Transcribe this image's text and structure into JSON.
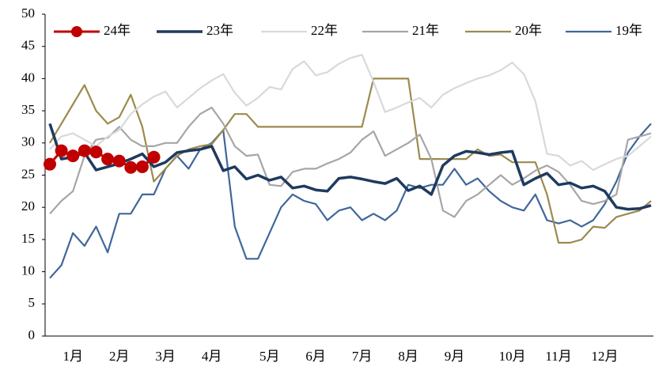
{
  "chart_data": {
    "type": "line",
    "categories": [
      null,
      null,
      "1月",
      null,
      null,
      null,
      "2月",
      null,
      null,
      null,
      "3月",
      null,
      null,
      null,
      "4月",
      null,
      null,
      null,
      null,
      "5月",
      null,
      null,
      null,
      "6月",
      null,
      null,
      null,
      "7月",
      null,
      null,
      null,
      "8月",
      null,
      null,
      null,
      "9月",
      null,
      null,
      null,
      null,
      "10月",
      null,
      null,
      null,
      "11月",
      null,
      null,
      null,
      "12月",
      null,
      null,
      null,
      null
    ],
    "ylim": [
      0,
      50
    ],
    "yticks": [
      0,
      5,
      10,
      15,
      20,
      25,
      30,
      35,
      40,
      45,
      50
    ],
    "grid": false,
    "legend": "top",
    "series": [
      {
        "name": "24年",
        "color": "#c00000",
        "marker": "circle",
        "values": [
          26.7,
          28.8,
          28,
          28.8,
          28.6,
          27.5,
          27.2,
          26.2,
          26.3,
          27.8,
          null,
          null,
          null,
          null,
          null,
          null,
          null,
          null,
          null,
          null,
          null,
          null,
          null,
          null,
          null,
          null,
          null,
          null,
          null,
          null,
          null,
          null,
          null,
          null,
          null,
          null,
          null,
          null,
          null,
          null,
          null,
          null,
          null,
          null,
          null,
          null,
          null,
          null,
          null,
          null,
          null,
          null,
          null
        ]
      },
      {
        "name": "23年",
        "color": "#1f3a5f",
        "values": [
          33,
          27.5,
          27.8,
          28.5,
          25.8,
          26.3,
          26.8,
          27.5,
          28.3,
          26.3,
          27,
          28.5,
          28.8,
          29,
          29.5,
          25.7,
          26.3,
          24.4,
          25,
          24.2,
          24.7,
          23,
          23.3,
          22.7,
          22.5,
          24.5,
          24.7,
          24.4,
          24,
          23.7,
          24.5,
          22.6,
          23.3,
          22,
          26.5,
          28,
          28.7,
          28.5,
          28.2,
          28.5,
          28.7,
          23.5,
          24.5,
          25.3,
          23.5,
          23.8,
          23,
          23.3,
          22.5,
          20,
          19.7,
          19.8,
          20.3
        ]
      },
      {
        "name": "22年",
        "color": "#d9d9d9",
        "values": [
          29,
          31,
          31.5,
          30.5,
          29.5,
          31,
          32,
          34.5,
          36,
          37.2,
          38,
          35.5,
          37,
          38.5,
          39.7,
          40.7,
          37.8,
          35.8,
          37,
          38.7,
          38.3,
          41.5,
          42.7,
          40.5,
          41,
          42.3,
          43.2,
          43.7,
          39.5,
          34.8,
          35.5,
          36.3,
          37,
          35.5,
          37.5,
          38.5,
          39.3,
          40,
          40.5,
          41.3,
          42.5,
          40.7,
          36.5,
          28.3,
          28,
          26.5,
          27.2,
          25.8,
          26.7,
          27.5,
          28,
          29.5,
          31
        ]
      },
      {
        "name": "21年",
        "color": "#a6a6a6",
        "values": [
          19,
          21,
          22.5,
          28,
          30.5,
          30.8,
          32.5,
          30.5,
          29.5,
          29.5,
          30,
          30,
          32.5,
          34.5,
          35.5,
          33,
          29.5,
          28,
          28.2,
          23.5,
          23.3,
          25.5,
          26,
          26,
          26.8,
          27.5,
          28.5,
          30.5,
          31.8,
          28,
          29,
          30,
          31.3,
          27.5,
          19.5,
          18.5,
          21,
          22,
          23.5,
          25,
          23.5,
          24.5,
          25.7,
          26.5,
          25.5,
          23.5,
          21,
          20.5,
          21,
          22,
          30.5,
          31,
          31.5
        ]
      },
      {
        "name": "20年",
        "color": "#9c8a4e",
        "values": [
          30,
          33,
          36,
          39,
          35,
          33,
          34,
          37.5,
          32.5,
          24,
          26,
          28,
          29,
          29.5,
          29.8,
          32,
          34.5,
          34.5,
          32.5,
          32.5,
          32.5,
          32.5,
          32.5,
          32.5,
          32.5,
          32.5,
          32.5,
          32.5,
          40,
          40,
          40,
          40,
          27.5,
          27.5,
          27.5,
          27.5,
          27.5,
          29,
          28,
          28.2,
          27,
          27,
          27,
          22,
          14.5,
          14.5,
          15,
          17,
          16.8,
          18.5,
          19,
          19.5,
          21
        ]
      },
      {
        "name": "19年",
        "color": "#40679a",
        "values": [
          9,
          11,
          16,
          14,
          17,
          13,
          19,
          19,
          22,
          22,
          26,
          28,
          26,
          29,
          30,
          32,
          17,
          12,
          12,
          16,
          20,
          22,
          21,
          20.5,
          18,
          19.5,
          20,
          18,
          19,
          18,
          19.5,
          23.5,
          23,
          23.5,
          23.5,
          26,
          23.5,
          24.5,
          22.5,
          21,
          20,
          19.5,
          22,
          18,
          17.5,
          18,
          17,
          18,
          20.5,
          24,
          28.5,
          31,
          33
        ]
      }
    ]
  }
}
